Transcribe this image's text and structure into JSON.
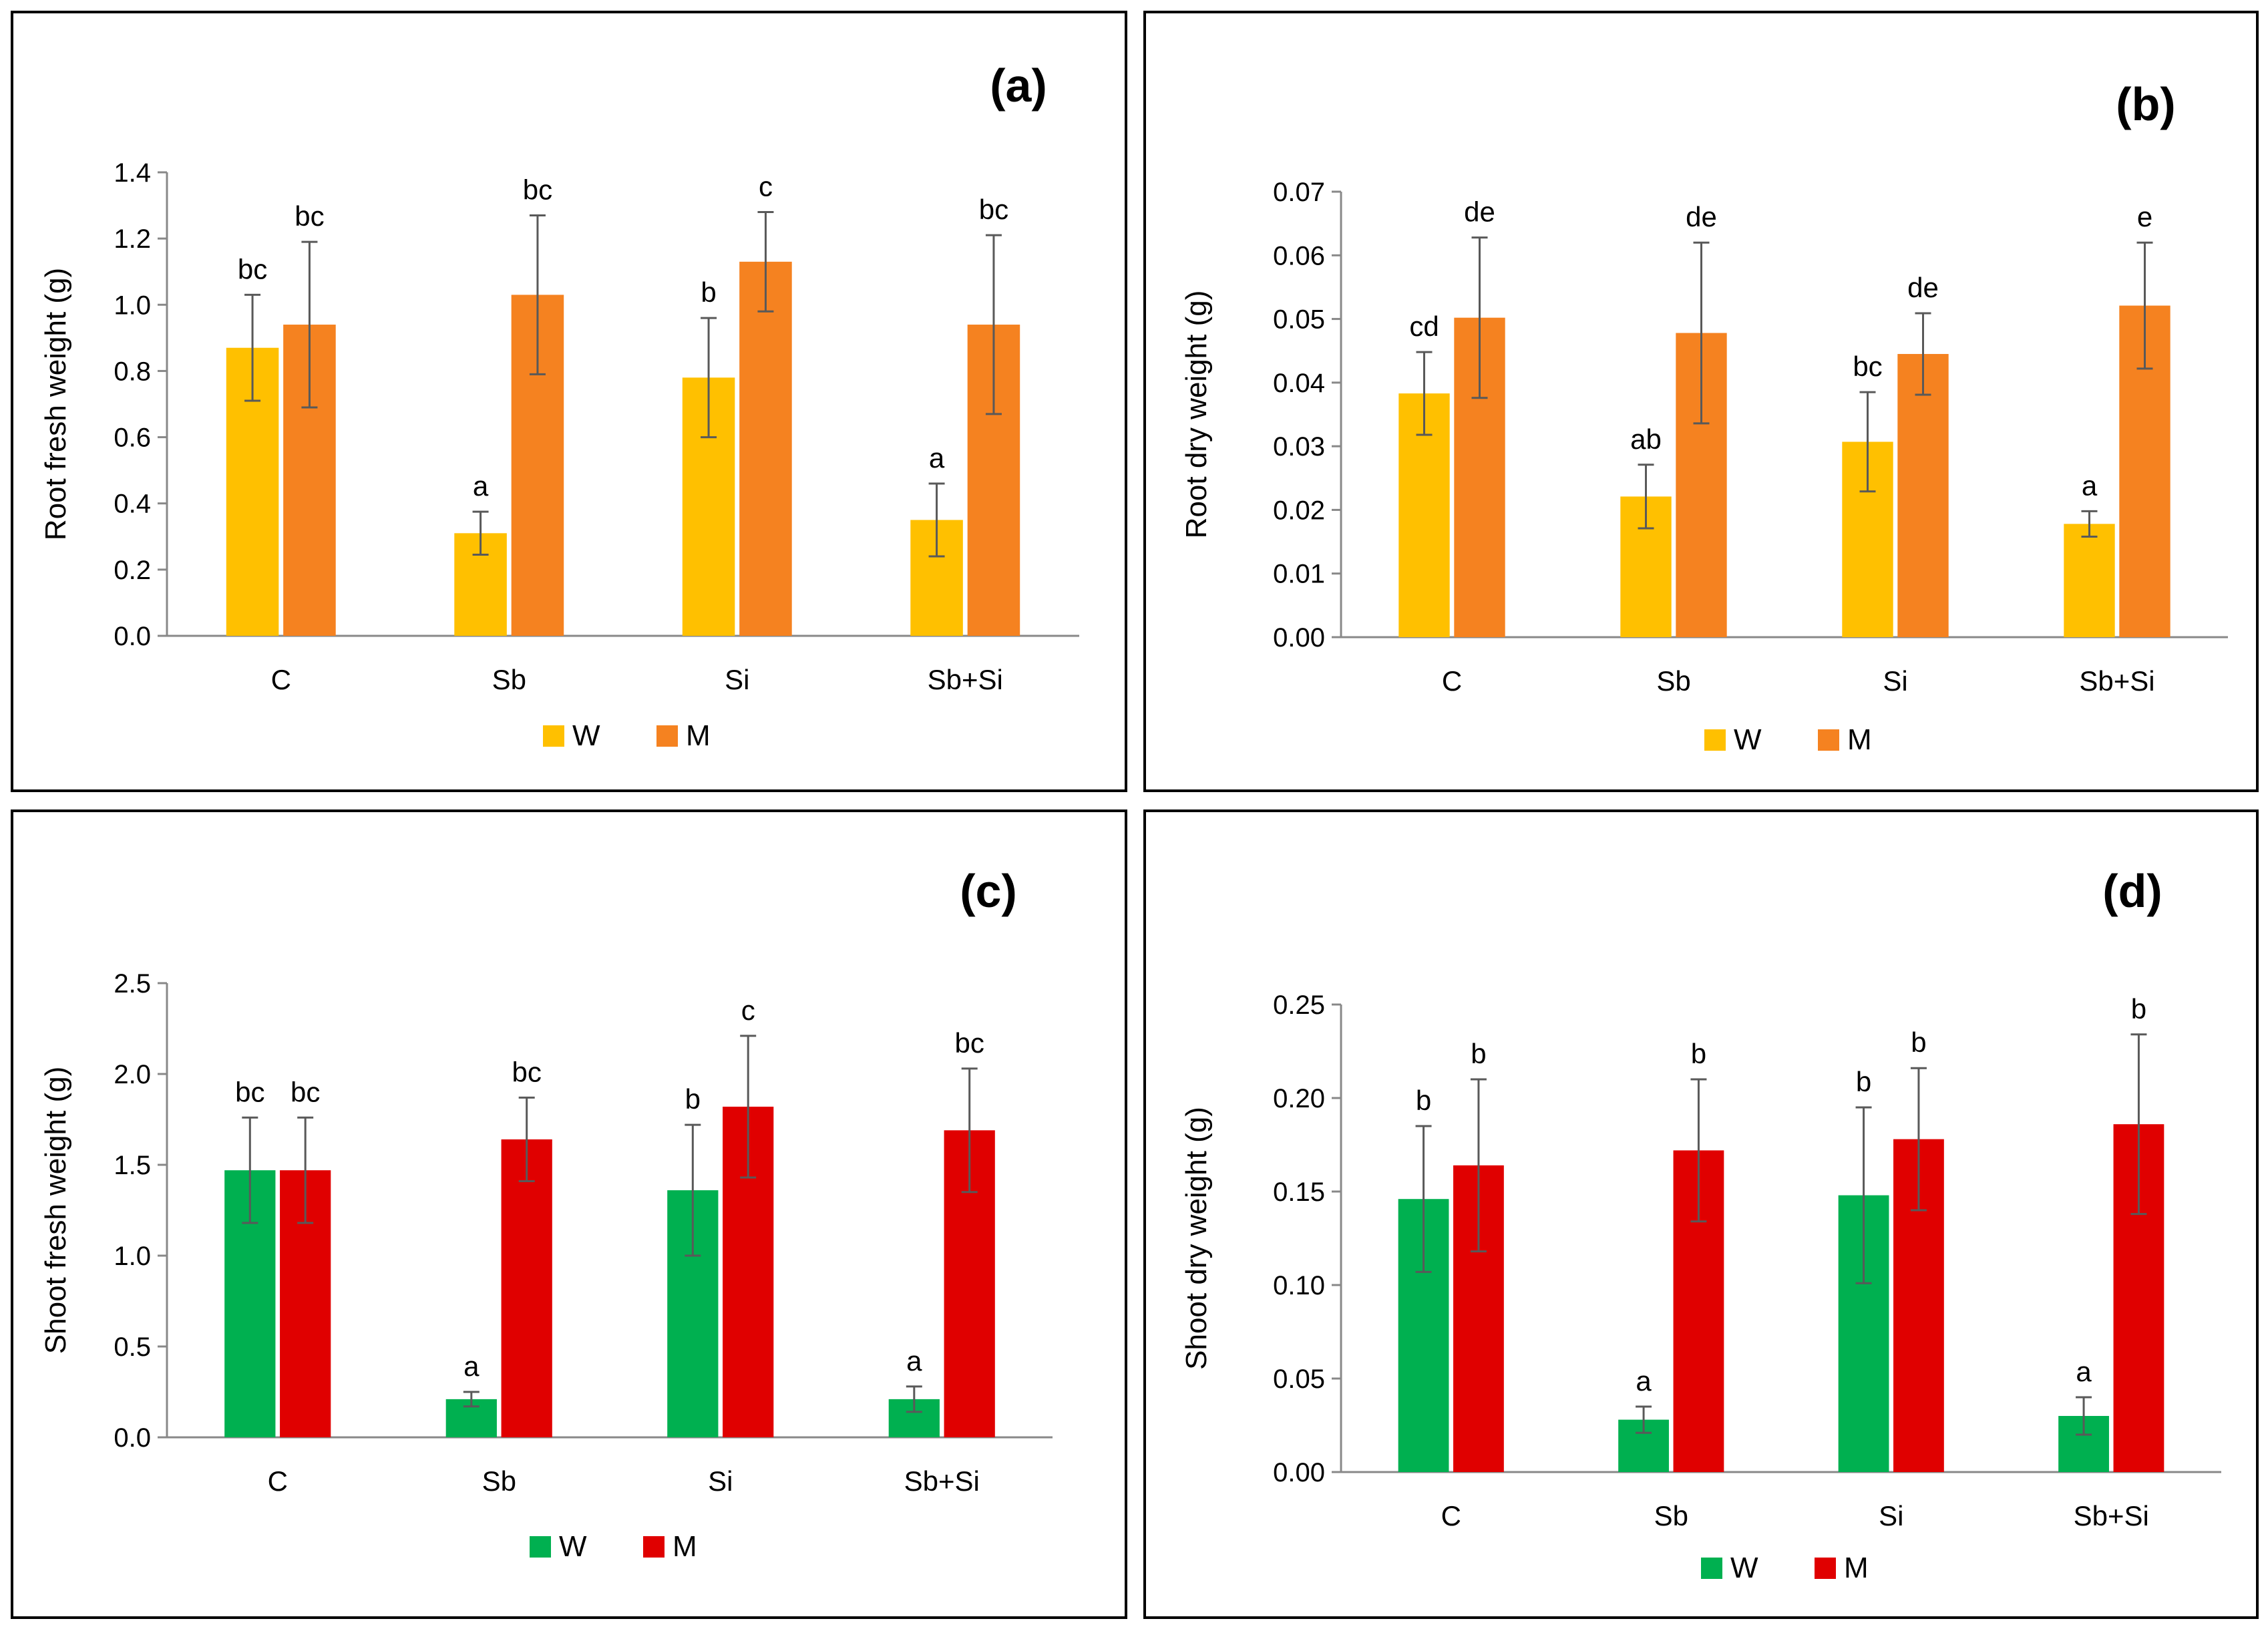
{
  "chart_data": [
    {
      "type": "bar",
      "panel": "(a)",
      "ylabel": "Root fresh weight (g)",
      "categories": [
        "C",
        "Sb",
        "Si",
        "Sb+Si"
      ],
      "ylim": [
        0,
        1.4
      ],
      "yticks": [
        "0.0",
        "0.2",
        "0.4",
        "0.6",
        "0.8",
        "1.0",
        "1.2",
        "1.4"
      ],
      "legend": "bottom-center",
      "series": [
        {
          "name": "W",
          "color": "#FFC000",
          "values": [
            0.87,
            0.31,
            0.78,
            0.35
          ],
          "errors": [
            0.16,
            0.065,
            0.18,
            0.11
          ],
          "sig": [
            "bc",
            "a",
            "b",
            "a"
          ]
        },
        {
          "name": "M",
          "color": "#F58220",
          "values": [
            0.94,
            1.03,
            1.13,
            0.94
          ],
          "errors": [
            0.25,
            0.24,
            0.15,
            0.27
          ],
          "sig": [
            "bc",
            "bc",
            "c",
            "bc"
          ]
        }
      ]
    },
    {
      "type": "bar",
      "panel": "(b)",
      "ylabel": "Root dry weight (g)",
      "categories": [
        "C",
        "Sb",
        "Si",
        "Sb+Si"
      ],
      "ylim": [
        0,
        0.07
      ],
      "yticks": [
        "0.00",
        "0.01",
        "0.02",
        "0.03",
        "0.04",
        "0.05",
        "0.06",
        "0.07"
      ],
      "legend": "bottom-center",
      "series": [
        {
          "name": "W",
          "color": "#FFC000",
          "values": [
            0.0383,
            0.0221,
            0.0307,
            0.0178
          ],
          "errors": [
            0.0065,
            0.005,
            0.0078,
            0.002
          ],
          "sig": [
            "cd",
            "ab",
            "bc",
            "a"
          ]
        },
        {
          "name": "M",
          "color": "#F58220",
          "values": [
            0.0502,
            0.0478,
            0.0445,
            0.0521
          ],
          "errors": [
            0.0126,
            0.0142,
            0.0064,
            0.0099
          ],
          "sig": [
            "de",
            "de",
            "de",
            "e"
          ]
        }
      ]
    },
    {
      "type": "bar",
      "panel": "(c)",
      "ylabel": "Shoot fresh weight (g)",
      "categories": [
        "C",
        "Sb",
        "Si",
        "Sb+Si"
      ],
      "ylim": [
        0,
        2.5
      ],
      "yticks": [
        "0.0",
        "0.5",
        "1.0",
        "1.5",
        "2.0",
        "2.5"
      ],
      "legend": "bottom-center",
      "series": [
        {
          "name": "W",
          "color": "#00B050",
          "values": [
            1.47,
            0.21,
            1.36,
            0.21
          ],
          "errors": [
            0.29,
            0.04,
            0.36,
            0.07
          ],
          "sig": [
            "bc",
            "a",
            "b",
            "a"
          ]
        },
        {
          "name": "M",
          "color": "#E00000",
          "values": [
            1.47,
            1.64,
            1.82,
            1.69
          ],
          "errors": [
            0.29,
            0.23,
            0.39,
            0.34
          ],
          "sig": [
            "bc",
            "bc",
            "c",
            "bc"
          ]
        }
      ]
    },
    {
      "type": "bar",
      "panel": "(d)",
      "ylabel": "Shoot dry weight (g)",
      "categories": [
        "C",
        "Sb",
        "Si",
        "Sb+Si"
      ],
      "ylim": [
        0,
        0.25
      ],
      "yticks": [
        "0.00",
        "0.05",
        "0.10",
        "0.15",
        "0.20",
        "0.25"
      ],
      "legend": "bottom-center",
      "series": [
        {
          "name": "W",
          "color": "#00B050",
          "values": [
            0.146,
            0.028,
            0.148,
            0.03
          ],
          "errors": [
            0.039,
            0.007,
            0.047,
            0.01
          ],
          "sig": [
            "b",
            "a",
            "b",
            "a"
          ]
        },
        {
          "name": "M",
          "color": "#E00000",
          "values": [
            0.164,
            0.172,
            0.178,
            0.186
          ],
          "errors": [
            0.046,
            0.038,
            0.038,
            0.048
          ],
          "sig": [
            "b",
            "b",
            "b",
            "b"
          ]
        }
      ]
    }
  ]
}
